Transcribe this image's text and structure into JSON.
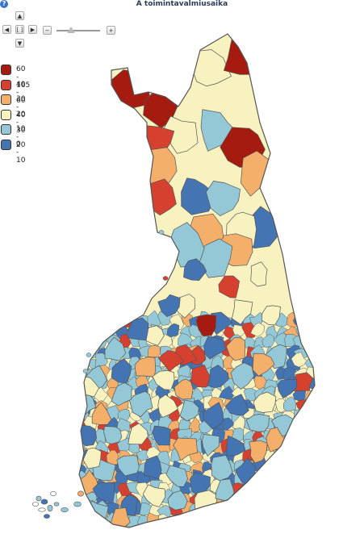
{
  "title": "A toimintavalmiusaika",
  "help_label": "?",
  "nav": {
    "up": "▲",
    "down": "▼",
    "left": "◀",
    "right": "▶",
    "center": "[ ]",
    "zoom_out": "−",
    "zoom_in": "+"
  },
  "zoom_level": 0.3,
  "legend": {
    "items": [
      {
        "label": "60 - 165",
        "color": "#a51b10"
      },
      {
        "label": "40 - 60",
        "color": "#d6402f"
      },
      {
        "label": "30 - 40",
        "color": "#f4b06b"
      },
      {
        "label": "20 - 30",
        "color": "#f8f2c0"
      },
      {
        "label": "10 - 20",
        "color": "#94c8d6"
      },
      {
        "label": "0 - 10",
        "color": "#4474b2"
      }
    ]
  },
  "colors": {
    "border": "#555555",
    "background": "#ffffff"
  }
}
